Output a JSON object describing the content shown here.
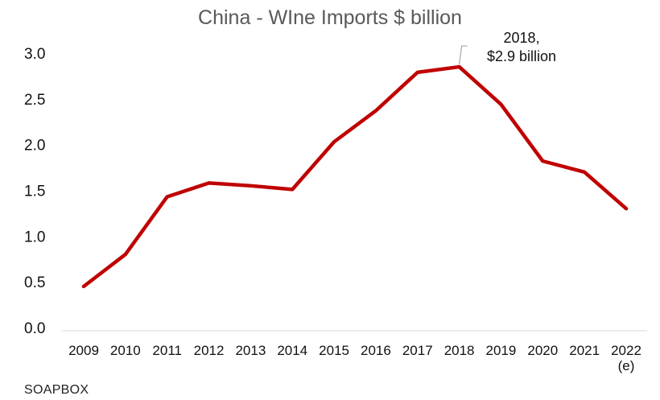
{
  "title": "China - WIne Imports $ billion",
  "footer": "SOAPBOX",
  "chart_data": {
    "type": "line",
    "title": "China - WIne Imports $ billion",
    "xlabel": "",
    "ylabel": "",
    "categories": [
      "2009",
      "2010",
      "2011",
      "2012",
      "2013",
      "2014",
      "2015",
      "2016",
      "2017",
      "2018",
      "2019",
      "2020",
      "2021",
      "2022"
    ],
    "category_sublabels": [
      "",
      "",
      "",
      "",
      "",
      "",
      "",
      "",
      "",
      "",
      "",
      "",
      "",
      "(e)"
    ],
    "series": [
      {
        "values": [
          0.45,
          0.8,
          1.43,
          1.58,
          1.55,
          1.51,
          2.03,
          2.37,
          2.79,
          2.85,
          2.44,
          1.82,
          1.7,
          1.3
        ]
      }
    ],
    "ylim": [
      0,
      3.0
    ],
    "yticks": [
      0.0,
      0.5,
      1.0,
      1.5,
      2.0,
      2.5,
      3.0
    ],
    "ytick_labels": [
      "0.0",
      "0.5",
      "1.0",
      "1.5",
      "2.0",
      "2.5",
      "3.0"
    ],
    "grid": false,
    "line_color": "#C00000",
    "annotation": {
      "index": 9,
      "lines": [
        "2018,",
        "$2.9 billion"
      ]
    }
  }
}
